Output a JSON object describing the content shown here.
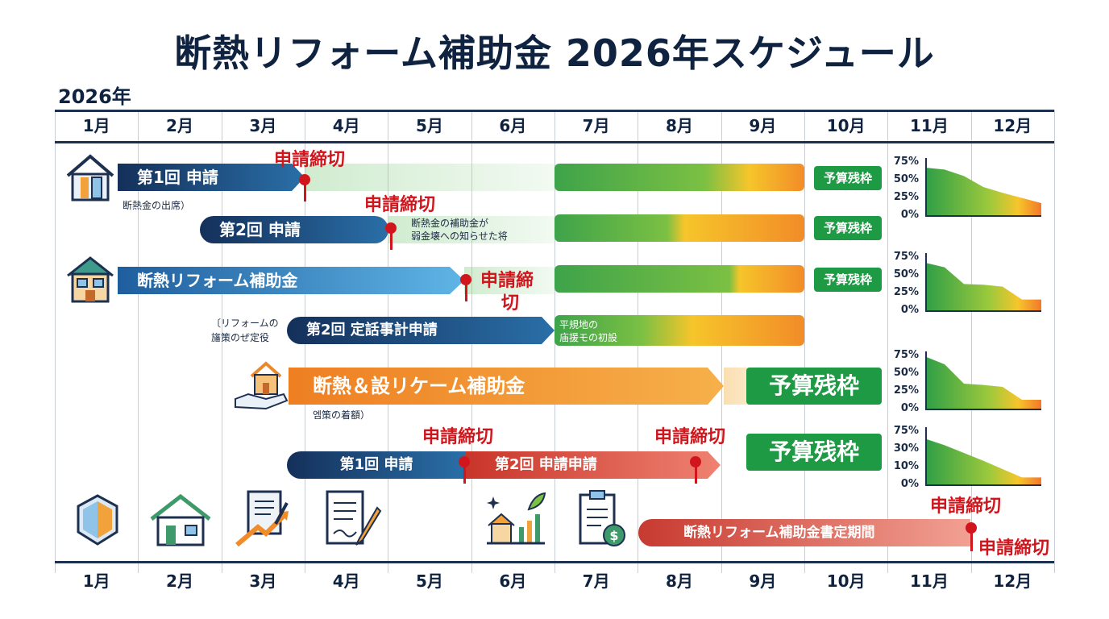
{
  "title": "断熱リフォーム補助金 2026年スケジュール",
  "year": "2026年",
  "months": [
    "1月",
    "2月",
    "3月",
    "4月",
    "5月",
    "6月",
    "7月",
    "8月",
    "9月",
    "10月",
    "11月",
    "12月"
  ],
  "rows": {
    "r1": {
      "label": "第1回 申請",
      "deadline": "申請締切",
      "note": "断熱金の出席）",
      "badge": "予算残枠"
    },
    "r2": {
      "label": "第2回 申請",
      "deadline": "申請締切",
      "note1": "断熱金の補助金が",
      "note2": "弱金壊への知らせた将",
      "badge": "予算残枠"
    },
    "r3": {
      "label": "断熱リフォーム補助金",
      "deadline1": "申請締",
      "deadline2": "切",
      "badge": "予算残枠"
    },
    "r4": {
      "label": "第2回 定話事計申請",
      "note_left1": "〔リフォームの",
      "note_left2": "旛策のぜ定役",
      "note_in1": "平規地の",
      "note_in2": "庙援モの初設"
    },
    "r5": {
      "label": "断熱＆設リケーム補助金",
      "badge": "予算残枠",
      "note": "엠策の着額）"
    },
    "r6": {
      "label1": "第1回 申請",
      "label2": "第2回 申請申請",
      "deadline1": "申請締切",
      "deadline2": "申請締切",
      "badge": "予算残枠"
    },
    "r7": {
      "label": "断熱リフォーム補助金書定期間",
      "deadline1": "申請締切",
      "deadline2": "申請締切"
    }
  },
  "minicharts": [
    {
      "ylabels": [
        "75%",
        "50%",
        "25%",
        "0%"
      ],
      "values": [
        0.75,
        0.72,
        0.62,
        0.45,
        0.36,
        0.28,
        0.2
      ]
    },
    {
      "ylabels": [
        "75%",
        "50%",
        "25%",
        "0%"
      ],
      "values": [
        0.75,
        0.68,
        0.42,
        0.41,
        0.38,
        0.18,
        0.18
      ]
    },
    {
      "ylabels": [
        "75%",
        "50%",
        "25%",
        "0%"
      ],
      "values": [
        0.82,
        0.7,
        0.4,
        0.38,
        0.35,
        0.15,
        0.15
      ]
    },
    {
      "ylabels": [
        "75%",
        "30%",
        "10%",
        "0%"
      ],
      "values": [
        0.72,
        0.62,
        0.5,
        0.38,
        0.25,
        0.12,
        0.12
      ]
    }
  ],
  "icons": [
    "shield-icon",
    "house-icon",
    "chart-pen-icon",
    "document-pen-icon",
    "city-growth-icon",
    "invoice-dollar-icon"
  ],
  "colors": {
    "navy": "#14305a",
    "green": "#1f9a44",
    "red": "#d0161c",
    "orange": "#f28c28"
  }
}
